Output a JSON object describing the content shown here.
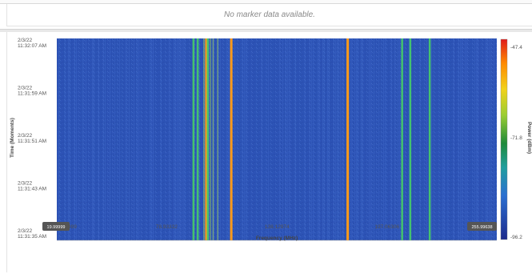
{
  "marker_panel": {
    "message": "No marker data available."
  },
  "chart_data": {
    "type": "heatmap",
    "xlabel": "Frequency (MHz)",
    "ylabel": "Time (Moments)",
    "colorbar_label": "Power (dBm)",
    "x_range": [
      "19.99999",
      "255.99638"
    ],
    "x_ticks": [
      "78.93332",
      "138.12974",
      "197.06306"
    ],
    "x_start_label": "19.99999",
    "x_end_label": "255.99638",
    "y_ticks": [
      {
        "date": "2/3/22",
        "time": "11:32:07 AM"
      },
      {
        "date": "2/3/22",
        "time": "11:31:59 AM"
      },
      {
        "date": "2/3/22",
        "time": "11:31:51 AM"
      },
      {
        "date": "2/3/22",
        "time": "11:31:43 AM"
      },
      {
        "date": "2/3/22",
        "time": "11:31:35 AM"
      }
    ],
    "colorbar": {
      "max": "-47.4",
      "mid": "-71.8",
      "min": "-96.2"
    },
    "colors": {
      "background": "#2e55b8",
      "strong": "#ff9a1a",
      "medium": "#46c86a",
      "weak": "#8fbf6a"
    },
    "signals_mhz": [
      {
        "freq": 93.3,
        "level": "medium"
      },
      {
        "freq": 95.6,
        "level": "medium"
      },
      {
        "freq": 98.9,
        "level": "weak"
      },
      {
        "freq": 100.2,
        "level": "strong"
      },
      {
        "freq": 101.0,
        "level": "medium"
      },
      {
        "freq": 102.4,
        "level": "weak"
      },
      {
        "freq": 103.9,
        "level": "weak"
      },
      {
        "freq": 106.3,
        "level": "weak"
      },
      {
        "freq": 113.6,
        "level": "strong"
      },
      {
        "freq": 176.0,
        "level": "strong"
      },
      {
        "freq": 205.2,
        "level": "medium"
      },
      {
        "freq": 209.6,
        "level": "medium"
      },
      {
        "freq": 220.0,
        "level": "medium"
      }
    ]
  }
}
